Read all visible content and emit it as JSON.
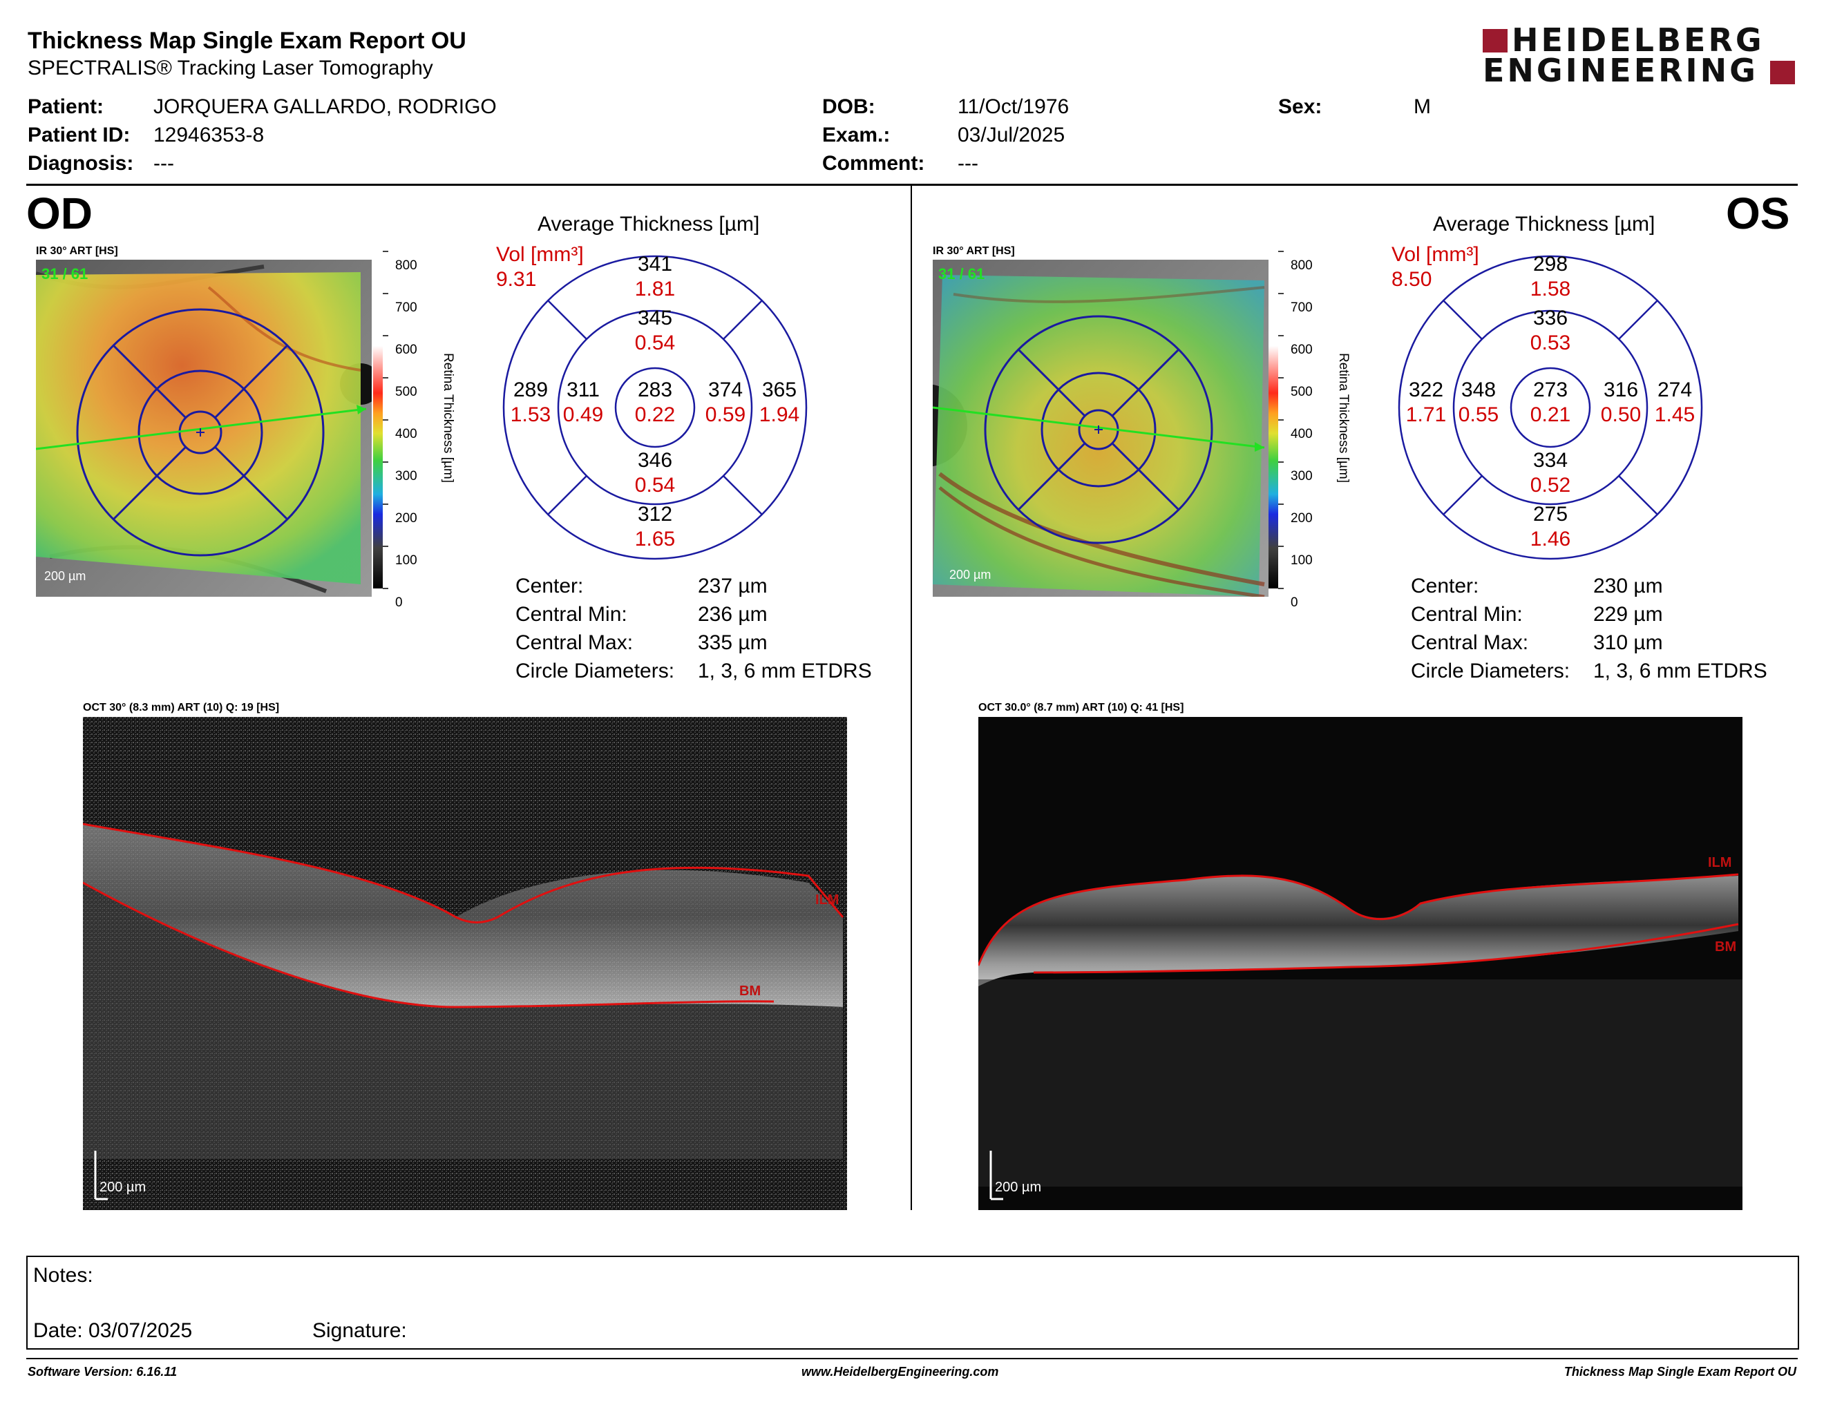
{
  "header": {
    "title": "Thickness Map Single Exam Report OU",
    "subtitle": "SPECTRALIS® Tracking Laser Tomography",
    "logo_line1": "HEIDELBERG",
    "logo_line2": "ENGINEERING",
    "brand_color": "#9b1a2e"
  },
  "patient": {
    "patient_label": "Patient:",
    "patient_value": "JORQUERA GALLARDO, RODRIGO",
    "id_label": "Patient ID:",
    "id_value": "12946353-8",
    "diagnosis_label": "Diagnosis:",
    "diagnosis_value": "---",
    "dob_label": "DOB:",
    "dob_value": "11/Oct/1976",
    "exam_label": "Exam.:",
    "exam_value": "03/Jul/2025",
    "comment_label": "Comment:",
    "comment_value": "---",
    "sex_label": "Sex:",
    "sex_value": "M"
  },
  "od": {
    "eye_label": "OD",
    "ir_label": "IR 30° ART [HS]",
    "frames": "31 / 61",
    "fundus_scale": "200 µm",
    "colorbar_ticks": [
      "800",
      "700",
      "600",
      "500",
      "400",
      "300",
      "200",
      "100",
      "0"
    ],
    "colorbar_title": "Retina  Thickness [µm]",
    "avg_title": "Average Thickness [µm]",
    "vol_label": "Vol [mm³]",
    "vol_total": "9.31",
    "sectors": {
      "outer_sup": [
        "341",
        "1.81"
      ],
      "inner_sup": [
        "345",
        "0.54"
      ],
      "outer_temp": [
        "289",
        "1.53"
      ],
      "inner_temp": [
        "311",
        "0.49"
      ],
      "center": [
        "283",
        "0.22"
      ],
      "inner_nas": [
        "374",
        "0.59"
      ],
      "outer_nas": [
        "365",
        "1.94"
      ],
      "inner_inf": [
        "346",
        "0.54"
      ],
      "outer_inf": [
        "312",
        "1.65"
      ]
    },
    "stats": [
      [
        "Center:",
        "237 µm"
      ],
      [
        "Central Min:",
        "236 µm"
      ],
      [
        "Central Max:",
        "335 µm"
      ],
      [
        "Circle Diameters:",
        "1, 3, 6 mm ETDRS"
      ]
    ],
    "oct_label": "OCT 30° (8.3 mm) ART (10) Q: 19 [HS]",
    "oct_scale": "200 µm",
    "ilm": "ILM",
    "bm": "BM"
  },
  "os": {
    "eye_label": "OS",
    "ir_label": "IR 30° ART [HS]",
    "frames": "31 / 61",
    "fundus_scale": "200 µm",
    "colorbar_ticks": [
      "800",
      "700",
      "600",
      "500",
      "400",
      "300",
      "200",
      "100",
      "0"
    ],
    "colorbar_title": "Retina  Thickness [µm]",
    "avg_title": "Average Thickness [µm]",
    "vol_label": "Vol [mm³]",
    "vol_total": "8.50",
    "sectors": {
      "outer_sup": [
        "298",
        "1.58"
      ],
      "inner_sup": [
        "336",
        "0.53"
      ],
      "outer_temp": [
        "322",
        "1.71"
      ],
      "inner_temp": [
        "348",
        "0.55"
      ],
      "center": [
        "273",
        "0.21"
      ],
      "inner_nas": [
        "316",
        "0.50"
      ],
      "outer_nas": [
        "274",
        "1.45"
      ],
      "inner_inf": [
        "334",
        "0.52"
      ],
      "outer_inf": [
        "275",
        "1.46"
      ]
    },
    "stats": [
      [
        "Center:",
        "230 µm"
      ],
      [
        "Central Min:",
        "229 µm"
      ],
      [
        "Central Max:",
        "310 µm"
      ],
      [
        "Circle Diameters:",
        "1, 3, 6 mm ETDRS"
      ]
    ],
    "oct_label": "OCT 30.0° (8.7 mm) ART (10) Q: 41 [HS]",
    "oct_scale": "200 µm",
    "ilm": "ILM",
    "bm": "BM"
  },
  "notes": {
    "notes_label": "Notes:",
    "date_label": "Date: 03/07/2025",
    "signature_label": "Signature:"
  },
  "footer": {
    "software": "Software Version: 6.16.11",
    "website": "www.HeidelbergEngineering.com",
    "report": "Thickness Map Single Exam Report OU"
  }
}
